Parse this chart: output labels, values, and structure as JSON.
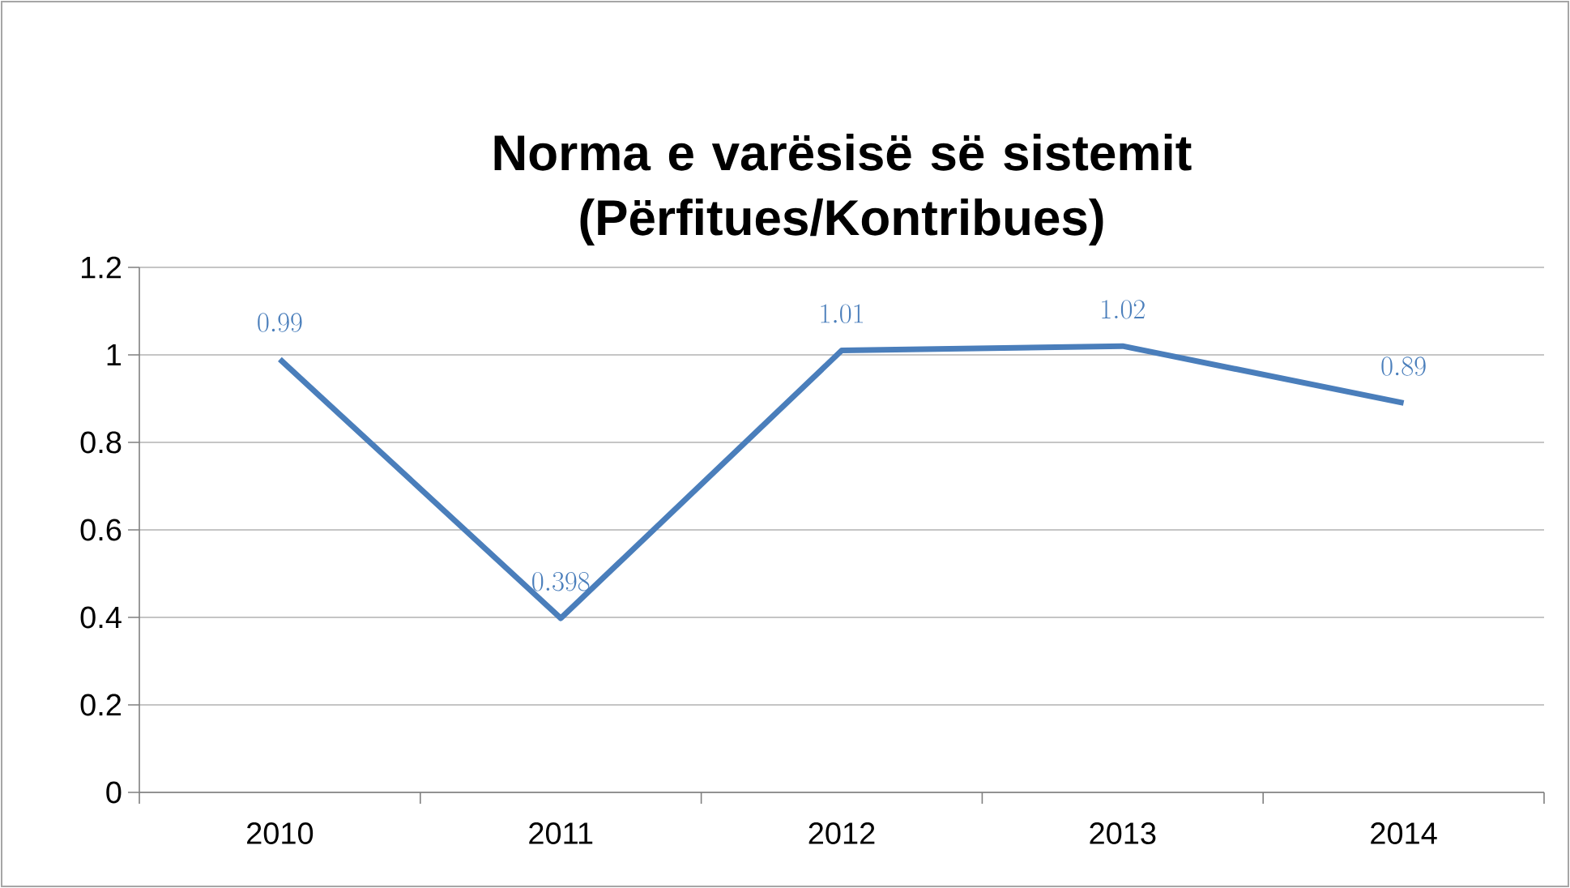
{
  "chart_data": {
    "type": "line",
    "title": "Norma e varësisë së sistemit (Përfitues/Kontribues)",
    "categories": [
      "2010",
      "2011",
      "2012",
      "2013",
      "2014"
    ],
    "series": [
      {
        "color": "#4a7ebb",
        "values": [
          0.99,
          0.398,
          1.01,
          1.02,
          0.89
        ]
      }
    ],
    "ylim": [
      0,
      1.2
    ],
    "yticks": [
      0,
      0.2,
      0.4,
      0.6,
      0.8,
      1,
      1.2
    ],
    "grid": "y",
    "data_labels": true
  }
}
